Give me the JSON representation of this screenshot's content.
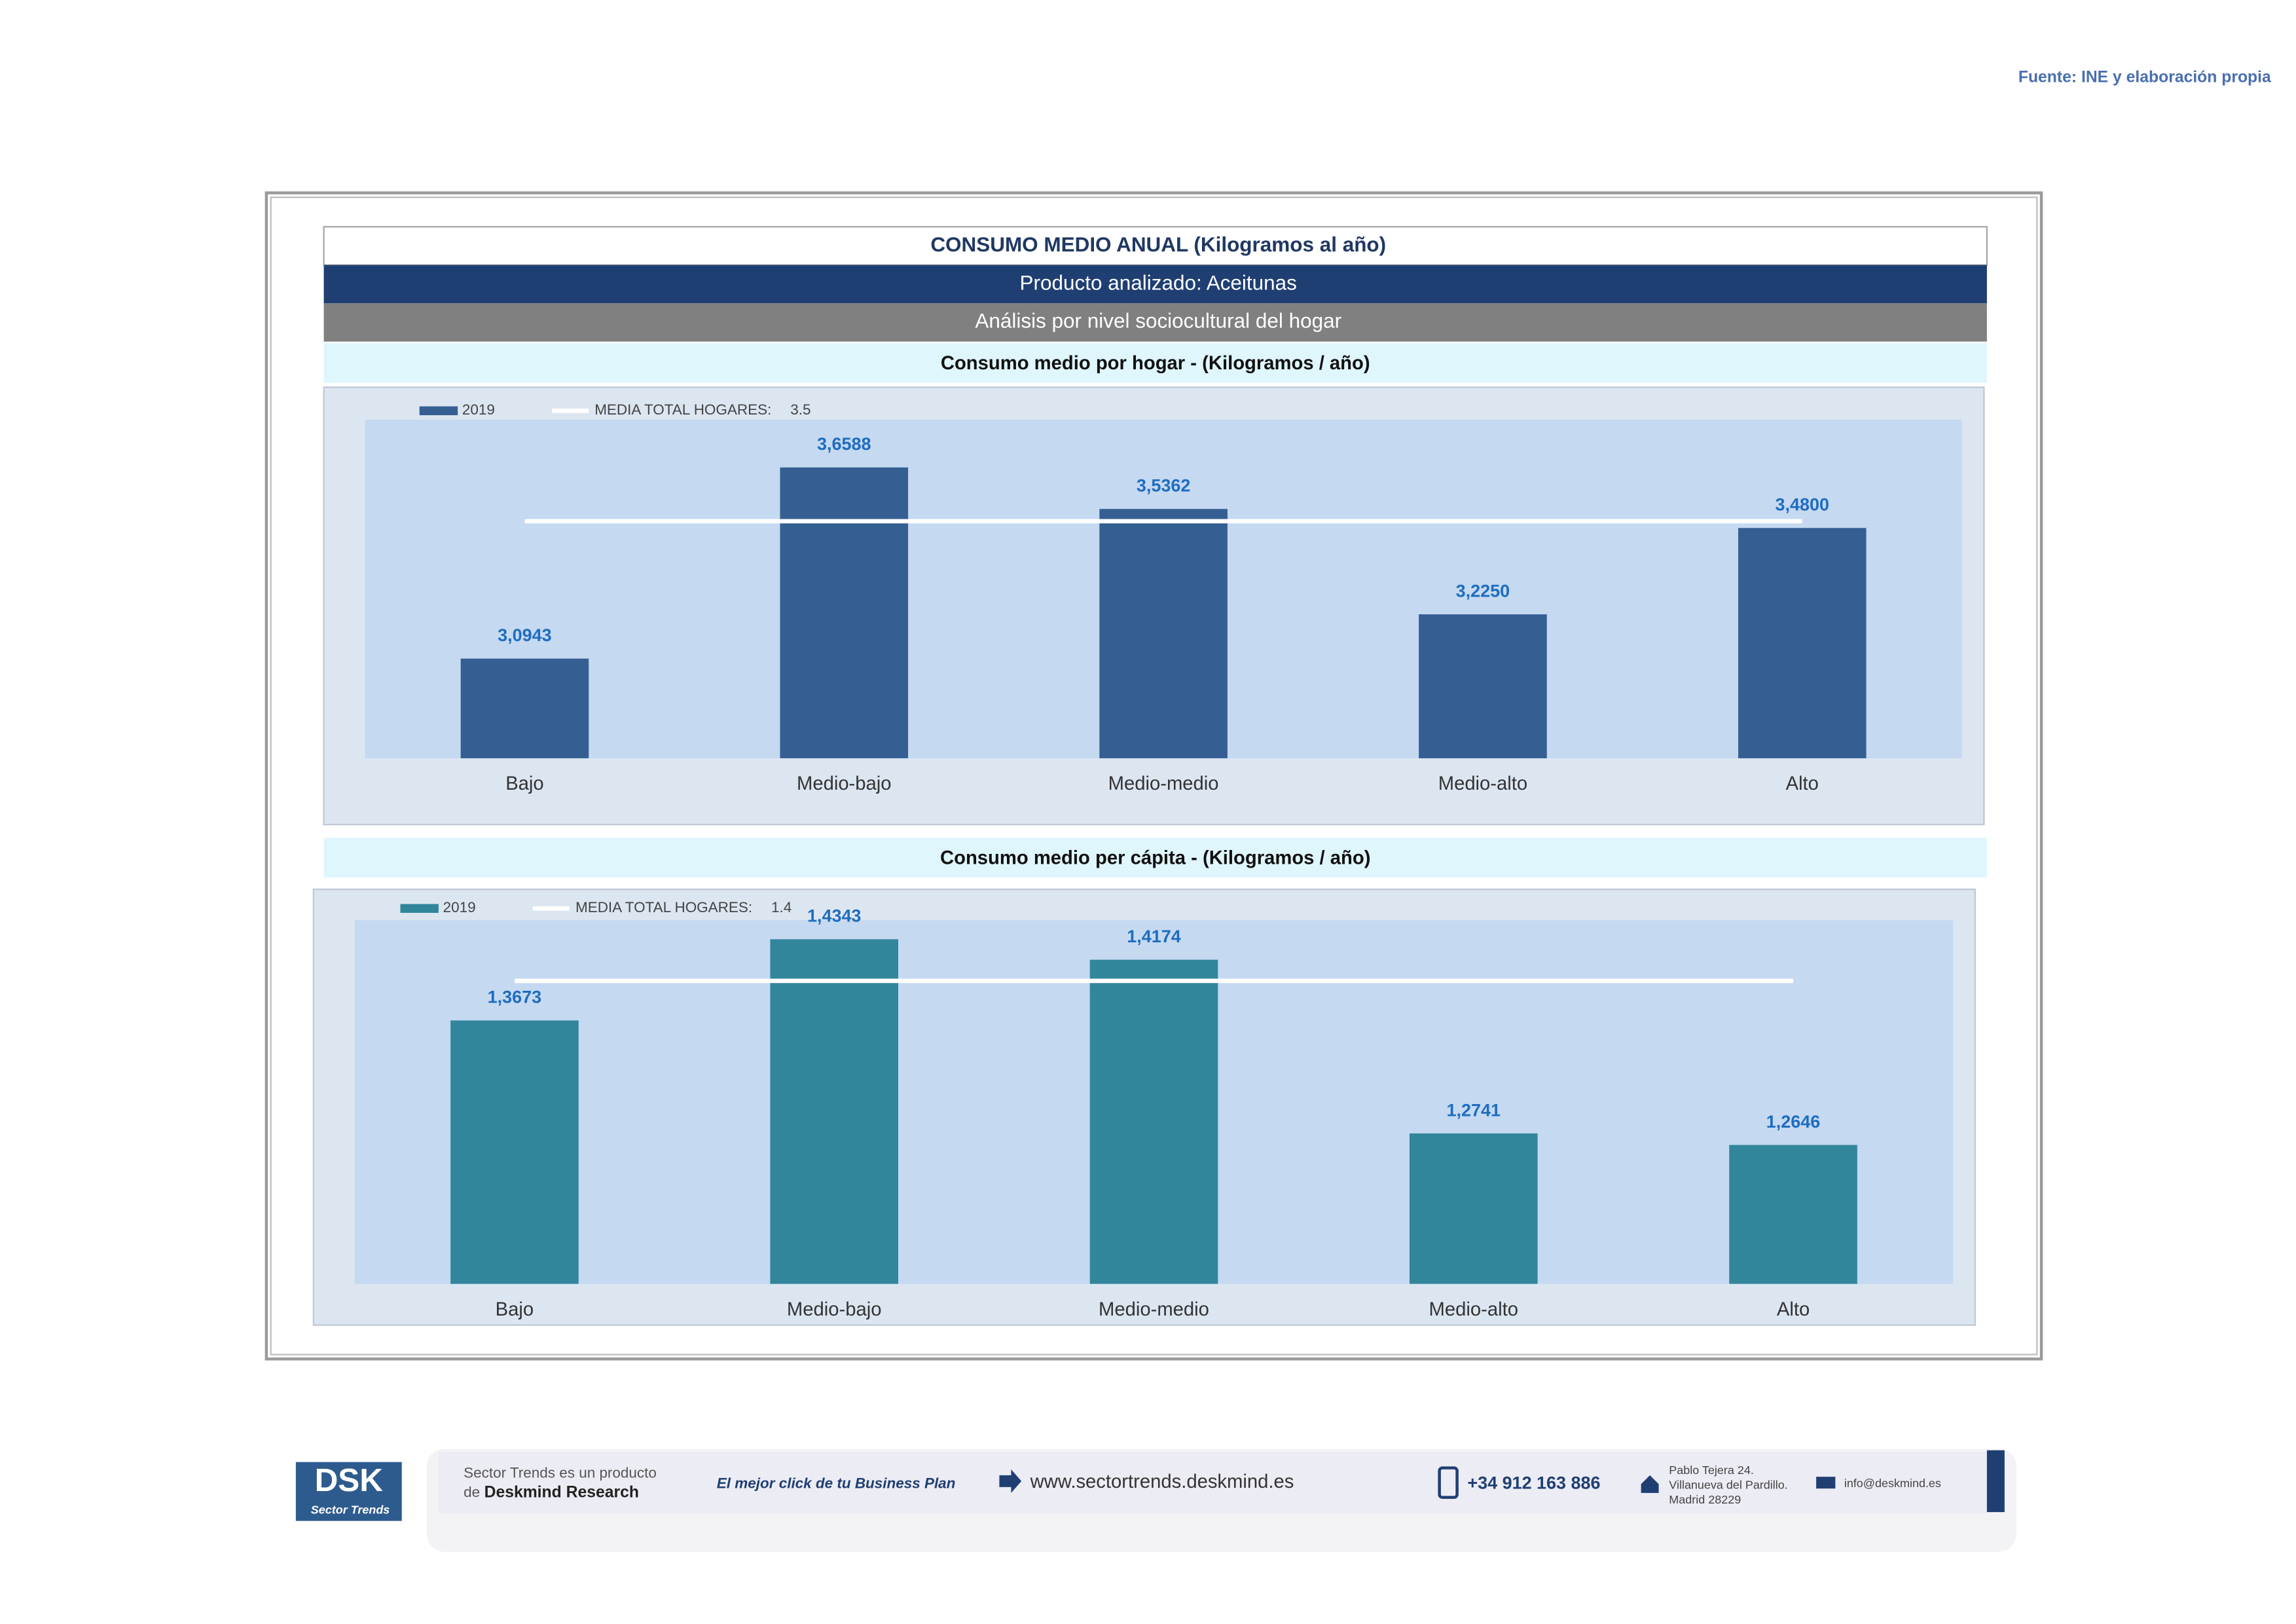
{
  "source": "Fuente: INE y elaboración propia",
  "header": {
    "title": "CONSUMO MEDIO ANUAL (Kilogramos al año)",
    "product": "Producto analizado: Aceitunas",
    "analysis": "Análisis por nivel sociocultural del hogar"
  },
  "chart_data": [
    {
      "type": "bar",
      "title": "Consumo medio por hogar -  (Kilogramos / año)",
      "categories": [
        "Bajo",
        "Medio-bajo",
        "Medio-medio",
        "Medio-alto",
        "Alto"
      ],
      "series": [
        {
          "name": "2019",
          "color": "#355f93",
          "values": [
            3.0943,
            3.6588,
            3.5362,
            3.225,
            3.48
          ],
          "value_labels": [
            "3,0943",
            "3,6588",
            "3,5362",
            "3,2250",
            "3,4800"
          ]
        }
      ],
      "mean": {
        "name": "MEDIA TOTAL  HOGARES:",
        "value": 3.5,
        "color": "#ffffff"
      },
      "ylim": [
        2.8,
        3.8
      ]
    },
    {
      "type": "bar",
      "title": "Consumo medio per cápita -  (Kilogramos / año)",
      "categories": [
        "Bajo",
        "Medio-bajo",
        "Medio-medio",
        "Medio-alto",
        "Alto"
      ],
      "series": [
        {
          "name": "2019",
          "color": "#31869b",
          "values": [
            1.3673,
            1.4343,
            1.4174,
            1.2741,
            1.2646
          ],
          "value_labels": [
            "1,3673",
            "1,4343",
            "1,4174",
            "1,2741",
            "1,2646"
          ]
        }
      ],
      "mean": {
        "name": "MEDIA TOTAL  HOGARES:",
        "value": 1.4,
        "color": "#ffffff"
      },
      "ylim": [
        1.15,
        1.45
      ]
    }
  ],
  "footer": {
    "logo": "DSK",
    "logo_sub": "Sector Trends",
    "line1": "Sector Trends es un producto",
    "de": "de",
    "company": "Deskmind Research",
    "slogan": "El mejor click de tu Business Plan",
    "web": "www.sectortrends.deskmind.es",
    "phone": "+34 912 163 886",
    "address": [
      "Pablo Tejera 24.",
      "Villanueva del Pardillo.",
      "Madrid 28229"
    ],
    "email": "info@deskmind.es"
  }
}
